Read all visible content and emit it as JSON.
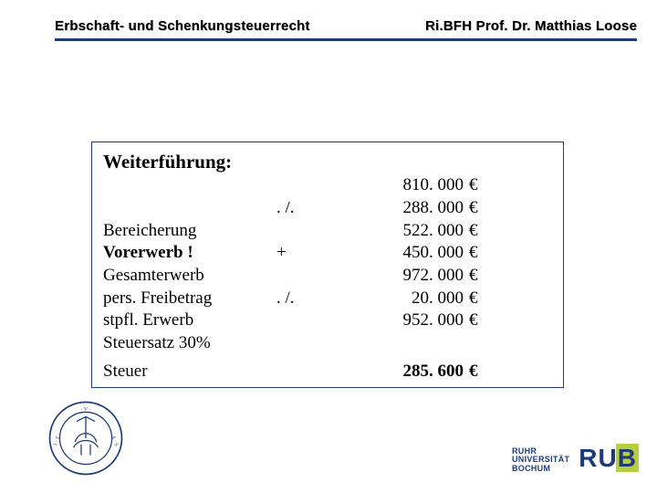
{
  "header": {
    "left": "Erbschaft- und Schenkungsteuerrecht",
    "right": "Ri.BFH Prof. Dr. Matthias Loose",
    "rule_color": "#1d3b78"
  },
  "box": {
    "border_color": "#1d3b78",
    "title": "Weiterführung:",
    "rows": [
      {
        "label": "",
        "op": "",
        "value": "810. 000",
        "unit": "€",
        "bold_label": false,
        "bold_value": false
      },
      {
        "label": "",
        "op": ". /.",
        "value": "288. 000",
        "unit": "€",
        "bold_label": false,
        "bold_value": false
      },
      {
        "label": "Bereicherung",
        "op": "",
        "value": "522. 000",
        "unit": "€",
        "bold_label": false,
        "bold_value": false
      },
      {
        "label": "Vorerwerb !",
        "op": "+",
        "value": "450. 000",
        "unit": "€",
        "bold_label": true,
        "bold_value": false
      },
      {
        "label": "Gesamterwerb",
        "op": "",
        "value": "972. 000",
        "unit": "€",
        "bold_label": false,
        "bold_value": false
      },
      {
        "label": "pers. Freibetrag",
        "op": ". /.",
        "value": "  20. 000",
        "unit": "€",
        "bold_label": false,
        "bold_value": false
      },
      {
        "label": "stpfl. Erwerb",
        "op": "",
        "value": "952. 000",
        "unit": "€",
        "bold_label": false,
        "bold_value": false
      },
      {
        "label": "Steuersatz 30%",
        "op": "",
        "value": "",
        "unit": "",
        "bold_label": false,
        "bold_value": false
      },
      {
        "label": "Steuer",
        "op": "",
        "value": "285. 600",
        "unit": "€",
        "bold_label": false,
        "bold_value": true
      }
    ]
  },
  "logo": {
    "text_line1": "RUHR",
    "text_line2": "UNIVERSITÄT",
    "text_line3": "BOCHUM",
    "mark_r": "R",
    "mark_u": "U",
    "mark_b": "B",
    "primary_color": "#1d3b78",
    "accent_color": "#b7cf3f"
  },
  "seal": {
    "stroke": "#1d3b78"
  }
}
